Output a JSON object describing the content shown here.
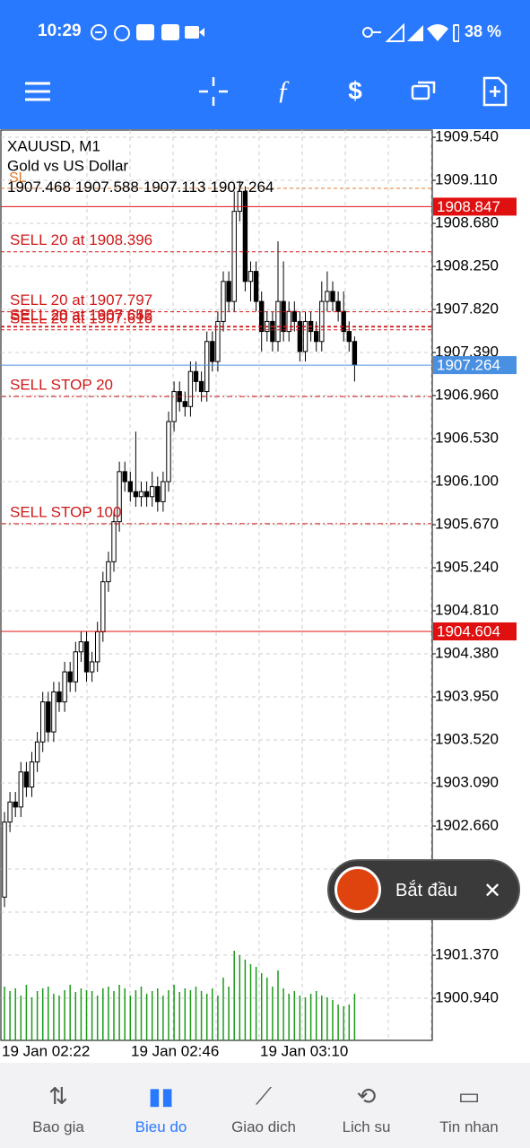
{
  "status_bar": {
    "time": "10:29",
    "battery": "38 %"
  },
  "chart_data": {
    "type": "candlestick",
    "symbol": "XAUUSD, M1",
    "description": "Gold vs US Dollar",
    "ohlc": [
      1907.468,
      1907.588,
      1907.113,
      1907.264
    ],
    "ylim": [
      1900.519,
      1909.612
    ],
    "yticks": [
      {
        "value": 1909.54,
        "label": "1909.540"
      },
      {
        "value": 1909.11,
        "label": "1909.110"
      },
      {
        "value": 1908.68,
        "label": "1908.680"
      },
      {
        "value": 1908.25,
        "label": "1908.250"
      },
      {
        "value": 1907.82,
        "label": "1907.820"
      },
      {
        "value": 1907.39,
        "label": "1907.390"
      },
      {
        "value": 1906.96,
        "label": "1906.960"
      },
      {
        "value": 1906.53,
        "label": "1906.530"
      },
      {
        "value": 1906.1,
        "label": "1906.100"
      },
      {
        "value": 1905.67,
        "label": "1905.670"
      },
      {
        "value": 1905.24,
        "label": "1905.240"
      },
      {
        "value": 1904.81,
        "label": "1904.810"
      },
      {
        "value": 1904.38,
        "label": "1904.380"
      },
      {
        "value": 1903.95,
        "label": "1903.950"
      },
      {
        "value": 1903.52,
        "label": "1903.520"
      },
      {
        "value": 1903.09,
        "label": "1903.090"
      },
      {
        "value": 1902.66,
        "label": "1902.660"
      },
      {
        "value": 1902.23,
        "label": "1902.230"
      },
      {
        "value": 1901.8,
        "label": "1901.800"
      },
      {
        "value": 1901.37,
        "label": "1901.370"
      },
      {
        "value": 1900.94,
        "label": "1900.940"
      }
    ],
    "x_labels": [
      "19 Jan 02:22",
      "19 Jan 02:46",
      "19 Jan 03:10"
    ],
    "candles": [
      [
        1901.95,
        1902.8,
        1901.85,
        1902.7
      ],
      [
        1902.7,
        1903.0,
        1902.6,
        1902.9
      ],
      [
        1902.9,
        1903.0,
        1902.75,
        1902.85
      ],
      [
        1902.85,
        1903.3,
        1902.75,
        1903.2
      ],
      [
        1903.2,
        1903.3,
        1902.95,
        1903.05
      ],
      [
        1903.05,
        1903.4,
        1902.95,
        1903.3
      ],
      [
        1903.3,
        1903.6,
        1903.2,
        1903.5
      ],
      [
        1903.5,
        1904.0,
        1903.4,
        1903.9
      ],
      [
        1903.9,
        1904.0,
        1903.5,
        1903.6
      ],
      [
        1903.6,
        1904.1,
        1903.5,
        1904.0
      ],
      [
        1904.0,
        1904.1,
        1903.8,
        1903.9
      ],
      [
        1903.9,
        1904.3,
        1903.8,
        1904.2
      ],
      [
        1904.2,
        1904.3,
        1904.0,
        1904.1
      ],
      [
        1904.1,
        1904.5,
        1904.0,
        1904.4
      ],
      [
        1904.4,
        1904.6,
        1904.3,
        1904.5
      ],
      [
        1904.5,
        1904.6,
        1904.1,
        1904.2
      ],
      [
        1904.2,
        1904.4,
        1904.1,
        1904.3
      ],
      [
        1904.3,
        1904.7,
        1904.2,
        1904.6
      ],
      [
        1904.6,
        1905.2,
        1904.5,
        1905.1
      ],
      [
        1905.1,
        1905.4,
        1905.0,
        1905.3
      ],
      [
        1905.3,
        1905.8,
        1905.2,
        1905.7
      ],
      [
        1905.7,
        1906.3,
        1905.6,
        1906.2
      ],
      [
        1906.2,
        1906.3,
        1906.0,
        1906.1
      ],
      [
        1906.1,
        1906.2,
        1905.9,
        1906.0
      ],
      [
        1906.0,
        1906.6,
        1905.85,
        1905.95
      ],
      [
        1905.95,
        1906.1,
        1905.85,
        1906.0
      ],
      [
        1906.0,
        1906.1,
        1905.85,
        1905.95
      ],
      [
        1905.95,
        1906.2,
        1905.85,
        1906.05
      ],
      [
        1906.05,
        1906.15,
        1905.8,
        1905.9
      ],
      [
        1905.9,
        1906.2,
        1905.8,
        1906.1
      ],
      [
        1906.1,
        1906.8,
        1906.0,
        1906.7
      ],
      [
        1906.7,
        1907.1,
        1906.6,
        1907.0
      ],
      [
        1907.0,
        1907.1,
        1906.8,
        1906.9
      ],
      [
        1906.9,
        1907.0,
        1906.75,
        1906.85
      ],
      [
        1906.85,
        1907.3,
        1906.75,
        1907.2
      ],
      [
        1907.2,
        1907.3,
        1907.0,
        1907.1
      ],
      [
        1907.1,
        1907.2,
        1906.9,
        1907.0
      ],
      [
        1907.0,
        1907.6,
        1906.9,
        1907.5
      ],
      [
        1907.5,
        1907.6,
        1907.2,
        1907.3
      ],
      [
        1907.3,
        1907.8,
        1907.2,
        1907.7
      ],
      [
        1907.7,
        1908.2,
        1907.6,
        1908.1
      ],
      [
        1908.1,
        1908.2,
        1907.8,
        1907.9
      ],
      [
        1907.9,
        1909.0,
        1907.8,
        1908.8
      ],
      [
        1908.8,
        1909.1,
        1908.7,
        1909.0
      ],
      [
        1909.0,
        1909.05,
        1908.0,
        1908.1
      ],
      [
        1908.1,
        1908.3,
        1907.9,
        1908.2
      ],
      [
        1908.2,
        1908.3,
        1907.8,
        1907.9
      ],
      [
        1907.9,
        1908.0,
        1907.4,
        1907.6
      ],
      [
        1907.6,
        1907.8,
        1907.5,
        1907.7
      ],
      [
        1907.7,
        1907.8,
        1907.4,
        1907.5
      ],
      [
        1907.5,
        1908.5,
        1907.4,
        1907.9
      ],
      [
        1907.9,
        1908.3,
        1907.5,
        1907.6
      ],
      [
        1907.6,
        1907.9,
        1907.5,
        1907.8
      ],
      [
        1907.8,
        1907.9,
        1907.6,
        1907.7
      ],
      [
        1907.7,
        1907.8,
        1907.3,
        1907.4
      ],
      [
        1907.4,
        1907.8,
        1907.3,
        1907.7
      ],
      [
        1907.7,
        1907.8,
        1907.5,
        1907.6
      ],
      [
        1907.6,
        1907.7,
        1907.4,
        1907.5
      ],
      [
        1907.5,
        1908.1,
        1907.4,
        1907.9
      ],
      [
        1907.9,
        1908.2,
        1907.8,
        1908.0
      ],
      [
        1908.0,
        1908.1,
        1907.8,
        1907.9
      ],
      [
        1907.9,
        1908.0,
        1907.7,
        1907.8
      ],
      [
        1907.8,
        1908.0,
        1907.5,
        1907.6
      ],
      [
        1907.6,
        1907.7,
        1907.4,
        1907.5
      ],
      [
        1907.5,
        1907.55,
        1907.1,
        1907.264
      ]
    ],
    "volumes": [
      60,
      55,
      58,
      50,
      62,
      48,
      55,
      58,
      60,
      52,
      50,
      56,
      62,
      54,
      58,
      56,
      55,
      50,
      58,
      60,
      55,
      62,
      58,
      50,
      56,
      60,
      52,
      55,
      58,
      50,
      56,
      62,
      54,
      58,
      56,
      60,
      55,
      52,
      58,
      50,
      70,
      60,
      100,
      95,
      90,
      85,
      82,
      75,
      70,
      60,
      78,
      58,
      52,
      55,
      50,
      48,
      52,
      55,
      50,
      48,
      45,
      40,
      38,
      40,
      52
    ],
    "volume_color": "#1a9a1a",
    "orders": [
      {
        "label": "SELL 20 at 1908.396",
        "level": 1908.396,
        "style": "dashed"
      },
      {
        "label": "SELL 20 at 1907.797",
        "level": 1907.797,
        "style": "dashed"
      },
      {
        "label": "SELL 20 at 1907.652",
        "level": 1907.652,
        "style": "dashed"
      },
      {
        "label": "SELL 20 at 1907.645",
        "level": 1907.645,
        "style": "dashed"
      },
      {
        "label": "SELL 20 at 1907.616",
        "level": 1907.616,
        "style": "dashed"
      },
      {
        "label": "SELL STOP 20",
        "level": 1906.95,
        "style": "dashdot"
      },
      {
        "label": "SELL STOP 100",
        "level": 1905.68,
        "style": "dashdot"
      }
    ],
    "order_color": "#d01818",
    "sl": {
      "label": "SL",
      "level": 1909.03,
      "color": "#e07a30"
    },
    "price_lines": [
      {
        "value": 1908.847,
        "color": "#e01010"
      },
      {
        "value": 1904.604,
        "color": "#e01010"
      }
    ],
    "bid": {
      "value": 1907.264,
      "color": "#4a90e2"
    },
    "grid": true
  },
  "overlay": {
    "label": "Bắt đầu"
  },
  "nav": [
    "Bao gia",
    "Bieu do",
    "Giao dich",
    "Lich su",
    "Tin nhan"
  ]
}
